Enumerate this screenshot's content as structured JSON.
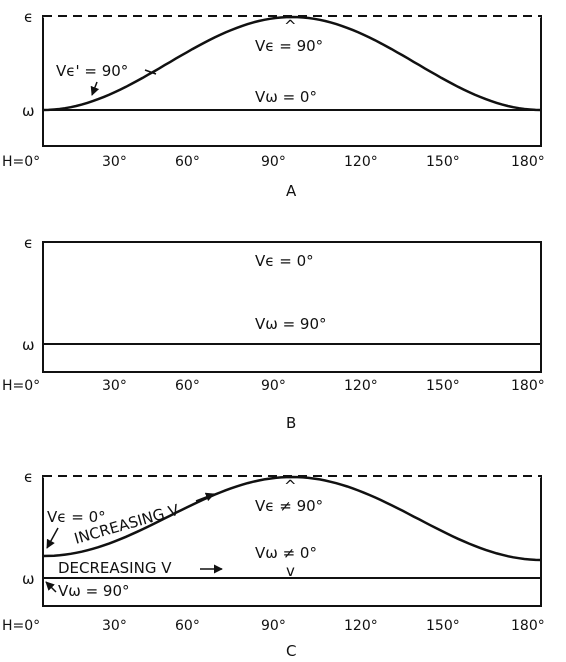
{
  "x_axis": {
    "prefix": "H=",
    "ticks": [
      "0°",
      "30°",
      "60°",
      "90°",
      "120°",
      "150°",
      "180°"
    ]
  },
  "panels": [
    {
      "letter": "A",
      "epsilon_symbol": "ϵ",
      "omega_symbol": "ω",
      "labels": {
        "v_eps_prime": "Vϵ' = 90°",
        "v_eps": "Vϵ = 90°",
        "v_omega": "Vω = 0°"
      },
      "peak_marker": "^"
    },
    {
      "letter": "B",
      "epsilon_symbol": "ϵ",
      "omega_symbol": "ω",
      "labels": {
        "v_eps": "Vϵ = 0°",
        "v_omega": "Vω = 90°"
      }
    },
    {
      "letter": "C",
      "epsilon_symbol": "ϵ",
      "omega_symbol": "ω",
      "labels": {
        "v_eps_left": "Vϵ = 0°",
        "increasing": "INCREASING V",
        "v_eps": "Vϵ ≠ 90°",
        "v_omega": "Vω ≠ 0°",
        "decreasing": "DECREASING V",
        "v_omega_left": "Vω = 90°"
      },
      "peak_marker": "^",
      "omega_marker": "v"
    }
  ]
}
